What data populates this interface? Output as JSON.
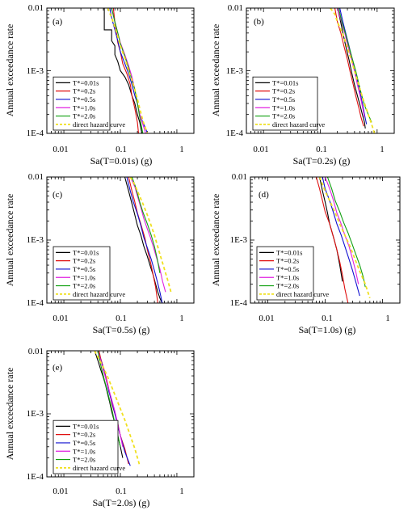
{
  "figure": {
    "colors": {
      "T*=0.01s": "#000000",
      "T*=0.2s": "#e01010",
      "T*=0.5s": "#1010d0",
      "T*=1.0s": "#e020e0",
      "T*=2.0s": "#10a010",
      "direct hazard curve": "#f0e020"
    }
  },
  "chart_data": [
    {
      "type": "line",
      "panel": "(a)",
      "xlabel": "Sa(T=0.01s) (g)",
      "ylabel": "Annual exceedance rate",
      "xscale": "log",
      "yscale": "log",
      "xlim": [
        0.005,
        2
      ],
      "ylim": [
        0.0001,
        0.01
      ],
      "xticks": [
        "0.01",
        "0.1",
        "1"
      ],
      "yticks": [
        "0.01",
        "1E-3",
        "1E-4"
      ],
      "legend_position": "lower-left",
      "series": [
        {
          "name": "T*=0.01s",
          "x": [
            0.045,
            0.052,
            0.052,
            0.07,
            0.07,
            0.08,
            0.08,
            0.09,
            0.1,
            0.12,
            0.14,
            0.16,
            0.18,
            0.2,
            0.22,
            0.24
          ],
          "y": [
            0.01,
            0.01,
            0.0045,
            0.0045,
            0.003,
            0.0025,
            0.0018,
            0.0014,
            0.001,
            0.0008,
            0.0006,
            0.0004,
            0.0003,
            0.0002,
            0.00015,
            0.0001
          ]
        },
        {
          "name": "T*=0.2s",
          "x": [
            0.075,
            0.08,
            0.085,
            0.09,
            0.1,
            0.11,
            0.13,
            0.15,
            0.16,
            0.18,
            0.2,
            0.21
          ],
          "y": [
            0.01,
            0.006,
            0.004,
            0.0028,
            0.002,
            0.0013,
            0.0009,
            0.0006,
            0.0004,
            0.00025,
            0.00015,
            0.0001
          ]
        },
        {
          "name": "T*=0.5s",
          "x": [
            0.065,
            0.07,
            0.08,
            0.09,
            0.1,
            0.12,
            0.14,
            0.16,
            0.18,
            0.2,
            0.22,
            0.25,
            0.28,
            0.3
          ],
          "y": [
            0.01,
            0.007,
            0.0045,
            0.003,
            0.002,
            0.0013,
            0.0009,
            0.0006,
            0.0004,
            0.0003,
            0.0002,
            0.00015,
            0.00012,
            0.0001
          ]
        },
        {
          "name": "T*=1.0s",
          "x": [
            0.07,
            0.08,
            0.09,
            0.1,
            0.12,
            0.14,
            0.16,
            0.18,
            0.2,
            0.22,
            0.25,
            0.28
          ],
          "y": [
            0.01,
            0.006,
            0.004,
            0.0028,
            0.0018,
            0.0012,
            0.0008,
            0.0005,
            0.0003,
            0.0002,
            0.00014,
            0.0001
          ]
        },
        {
          "name": "T*=2.0s",
          "x": [
            0.07,
            0.08,
            0.09,
            0.1,
            0.12,
            0.14,
            0.16,
            0.18,
            0.2,
            0.22,
            0.25
          ],
          "y": [
            0.01,
            0.006,
            0.004,
            0.0027,
            0.0017,
            0.0011,
            0.0007,
            0.0005,
            0.0003,
            0.00018,
            0.0001
          ]
        },
        {
          "name": "direct hazard curve",
          "x": [
            0.06,
            0.07,
            0.08,
            0.09,
            0.1,
            0.12,
            0.14,
            0.16,
            0.18,
            0.2,
            0.22,
            0.25,
            0.3
          ],
          "y": [
            0.01,
            0.007,
            0.005,
            0.0035,
            0.0025,
            0.0016,
            0.001,
            0.0007,
            0.0005,
            0.00035,
            0.00025,
            0.00016,
            0.0001
          ]
        }
      ]
    },
    {
      "type": "line",
      "panel": "(b)",
      "xlabel": "Sa(T=0.2s) (g)",
      "ylabel": "Annual exceedance rate",
      "xscale": "log",
      "yscale": "log",
      "xlim": [
        0.005,
        2
      ],
      "ylim": [
        0.0001,
        0.01
      ],
      "xticks": [
        "0.01",
        "0.1",
        "1"
      ],
      "yticks": [
        "0.01",
        "1E-3",
        "1E-4"
      ],
      "legend_position": "lower-left",
      "series": [
        {
          "name": "T*=0.01s",
          "x": [
            0.2,
            0.22,
            0.25,
            0.28,
            0.32,
            0.36,
            0.4,
            0.45,
            0.5,
            0.55,
            0.6,
            0.62
          ],
          "y": [
            0.01,
            0.007,
            0.004,
            0.0025,
            0.0015,
            0.0009,
            0.0006,
            0.0004,
            0.00028,
            0.0002,
            0.00015,
            0.00012
          ]
        },
        {
          "name": "T*=0.2s",
          "x": [
            0.18,
            0.2,
            0.23,
            0.26,
            0.3,
            0.34,
            0.38,
            0.42,
            0.48,
            0.52,
            0.58
          ],
          "y": [
            0.01,
            0.006,
            0.004,
            0.0025,
            0.0015,
            0.0009,
            0.0006,
            0.0004,
            0.00025,
            0.00018,
            0.00013
          ]
        },
        {
          "name": "T*=0.5s",
          "x": [
            0.22,
            0.25,
            0.28,
            0.32,
            0.36,
            0.4,
            0.45,
            0.5,
            0.55,
            0.6,
            0.65
          ],
          "y": [
            0.01,
            0.006,
            0.004,
            0.0025,
            0.0016,
            0.001,
            0.0007,
            0.00045,
            0.0003,
            0.0002,
            0.00014
          ]
        },
        {
          "name": "T*=1.0s",
          "x": [
            0.2,
            0.23,
            0.27,
            0.3,
            0.35,
            0.4,
            0.45,
            0.5,
            0.55,
            0.6
          ],
          "y": [
            0.01,
            0.0065,
            0.004,
            0.0026,
            0.0016,
            0.001,
            0.0006,
            0.0004,
            0.00027,
            0.00018
          ]
        },
        {
          "name": "T*=2.0s",
          "x": [
            0.21,
            0.24,
            0.28,
            0.32,
            0.37,
            0.42,
            0.47,
            0.53,
            0.6,
            0.7,
            0.8
          ],
          "y": [
            0.01,
            0.006,
            0.0038,
            0.0024,
            0.0015,
            0.001,
            0.00065,
            0.00042,
            0.00028,
            0.0002,
            0.00015
          ]
        },
        {
          "name": "direct hazard curve",
          "x": [
            0.15,
            0.18,
            0.2,
            0.25,
            0.3,
            0.35,
            0.4,
            0.5,
            0.6,
            0.7,
            0.8,
            0.9
          ],
          "y": [
            0.01,
            0.008,
            0.006,
            0.0038,
            0.0023,
            0.0015,
            0.001,
            0.0005,
            0.0003,
            0.0002,
            0.00014,
            0.0001
          ]
        }
      ]
    },
    {
      "type": "line",
      "panel": "(c)",
      "xlabel": "Sa(T=0.5s) (g)",
      "ylabel": "Annual exceedance rate",
      "xscale": "log",
      "yscale": "log",
      "xlim": [
        0.005,
        2
      ],
      "ylim": [
        0.0001,
        0.01
      ],
      "xticks": [
        "0.01",
        "0.1",
        "1"
      ],
      "yticks": [
        "0.01",
        "1E-3",
        "1E-4"
      ],
      "legend_position": "lower-left",
      "series": [
        {
          "name": "T*=0.01s",
          "x": [
            0.12,
            0.14,
            0.16,
            0.18,
            0.2,
            0.23,
            0.26,
            0.3,
            0.34,
            0.38,
            0.42,
            0.46,
            0.5,
            0.55
          ],
          "y": [
            0.01,
            0.006,
            0.0038,
            0.0025,
            0.0017,
            0.0012,
            0.0008,
            0.00055,
            0.00038,
            0.00028,
            0.0002,
            0.00015,
            0.00012,
            0.0001
          ]
        },
        {
          "name": "T*=0.2s",
          "x": [
            0.14,
            0.16,
            0.18,
            0.2,
            0.23,
            0.27,
            0.3,
            0.34,
            0.38,
            0.42,
            0.46
          ],
          "y": [
            0.01,
            0.006,
            0.004,
            0.0027,
            0.0018,
            0.0011,
            0.0007,
            0.00045,
            0.00028,
            0.00018,
            0.0001
          ]
        },
        {
          "name": "T*=0.5s",
          "x": [
            0.13,
            0.15,
            0.17,
            0.2,
            0.23,
            0.26,
            0.3,
            0.35,
            0.4,
            0.45,
            0.5,
            0.55
          ],
          "y": [
            0.01,
            0.006,
            0.004,
            0.0026,
            0.0017,
            0.0011,
            0.00075,
            0.0005,
            0.00033,
            0.00022,
            0.00015,
            0.0001
          ]
        },
        {
          "name": "T*=1.0s",
          "x": [
            0.15,
            0.18,
            0.2,
            0.23,
            0.26,
            0.3,
            0.34,
            0.38,
            0.43,
            0.5,
            0.56,
            0.63
          ],
          "y": [
            0.01,
            0.007,
            0.005,
            0.0033,
            0.0022,
            0.0015,
            0.0011,
            0.0008,
            0.00055,
            0.00035,
            0.00022,
            0.00015
          ]
        },
        {
          "name": "T*=2.0s",
          "x": [
            0.16,
            0.18,
            0.2,
            0.22,
            0.25,
            0.3,
            0.35,
            0.4,
            0.45,
            0.5
          ],
          "y": [
            0.01,
            0.0075,
            0.0055,
            0.004,
            0.0028,
            0.0018,
            0.0012,
            0.0008,
            0.0005,
            0.0003
          ]
        },
        {
          "name": "direct hazard curve",
          "x": [
            0.15,
            0.18,
            0.2,
            0.25,
            0.3,
            0.35,
            0.4,
            0.5,
            0.6,
            0.7,
            0.8
          ],
          "y": [
            0.01,
            0.0075,
            0.006,
            0.0038,
            0.0025,
            0.0017,
            0.0012,
            0.0006,
            0.00035,
            0.00022,
            0.00014
          ]
        }
      ]
    },
    {
      "type": "line",
      "panel": "(d)",
      "xlabel": "Sa(T=1.0s) (g)",
      "ylabel": "Annual exceedance rate",
      "xscale": "log",
      "yscale": "log",
      "xlim": [
        0.005,
        2
      ],
      "ylim": [
        0.0001,
        0.01
      ],
      "xticks": [
        "0.01",
        "0.1",
        "1"
      ],
      "yticks": [
        "0.01",
        "1E-3",
        "1E-4"
      ],
      "legend_position": "lower-left",
      "series": [
        {
          "name": "T*=0.01s",
          "x": [
            0.08,
            0.09,
            0.1,
            0.11,
            0.12,
            0.14,
            0.16,
            0.18,
            0.2
          ],
          "y": [
            0.01,
            0.006,
            0.004,
            0.0027,
            0.0018,
            0.0011,
            0.0007,
            0.0004,
            0.00022
          ]
        },
        {
          "name": "T*=0.2s",
          "x": [
            0.07,
            0.08,
            0.09,
            0.1,
            0.12,
            0.14,
            0.16,
            0.18,
            0.2,
            0.22,
            0.25
          ],
          "y": [
            0.01,
            0.0065,
            0.0042,
            0.0028,
            0.0018,
            0.0011,
            0.0007,
            0.00045,
            0.00028,
            0.00017,
            0.0001
          ]
        },
        {
          "name": "T*=0.5s",
          "x": [
            0.09,
            0.1,
            0.12,
            0.14,
            0.16,
            0.19,
            0.22,
            0.26,
            0.3,
            0.35,
            0.4
          ],
          "y": [
            0.01,
            0.0065,
            0.0042,
            0.0027,
            0.0018,
            0.0012,
            0.0008,
            0.0005,
            0.00033,
            0.0002,
            0.00013
          ]
        },
        {
          "name": "T*=1.0s",
          "x": [
            0.1,
            0.12,
            0.14,
            0.16,
            0.19,
            0.22,
            0.26,
            0.3,
            0.34,
            0.38
          ],
          "y": [
            0.01,
            0.0065,
            0.0042,
            0.0027,
            0.0018,
            0.0012,
            0.0008,
            0.0005,
            0.00032,
            0.0002
          ]
        },
        {
          "name": "T*=2.0s",
          "x": [
            0.11,
            0.13,
            0.15,
            0.18,
            0.21,
            0.25,
            0.29,
            0.34,
            0.4,
            0.46,
            0.5
          ],
          "y": [
            0.01,
            0.0065,
            0.0042,
            0.0028,
            0.0019,
            0.0013,
            0.0009,
            0.0006,
            0.0004,
            0.00026,
            0.00018
          ]
        },
        {
          "name": "direct hazard curve",
          "x": [
            0.08,
            0.1,
            0.12,
            0.15,
            0.18,
            0.22,
            0.27,
            0.33,
            0.4,
            0.5,
            0.6
          ],
          "y": [
            0.01,
            0.006,
            0.0042,
            0.0027,
            0.0018,
            0.0012,
            0.0008,
            0.0005,
            0.00032,
            0.0002,
            0.00012
          ]
        }
      ]
    },
    {
      "type": "line",
      "panel": "(e)",
      "xlabel": "Sa(T=2.0s) (g)",
      "ylabel": "Annual exceedance rate",
      "xscale": "log",
      "yscale": "log",
      "xlim": [
        0.005,
        2
      ],
      "ylim": [
        0.0001,
        0.01
      ],
      "xticks": [
        "0.01",
        "0.1",
        "1"
      ],
      "yticks": [
        "0.01",
        "1E-3",
        "1E-4"
      ],
      "legend_position": "lower-left",
      "series": [
        {
          "name": "T*=0.01s",
          "x": [
            0.035,
            0.04,
            0.045,
            0.05,
            0.055,
            0.06,
            0.065,
            0.07,
            0.08,
            0.09,
            0.1,
            0.11
          ],
          "y": [
            0.01,
            0.007,
            0.005,
            0.0038,
            0.0028,
            0.002,
            0.0015,
            0.0011,
            0.0007,
            0.00045,
            0.0003,
            0.0002
          ]
        },
        {
          "name": "T*=0.2s",
          "x": [
            0.042,
            0.045,
            0.05,
            0.055,
            0.06,
            0.065,
            0.07,
            0.08,
            0.09,
            0.1,
            0.12,
            0.14
          ],
          "y": [
            0.01,
            0.0075,
            0.0055,
            0.004,
            0.0029,
            0.0021,
            0.0015,
            0.001,
            0.0007,
            0.00045,
            0.00028,
            0.00016
          ]
        },
        {
          "name": "T*=0.5s",
          "x": [
            0.04,
            0.043,
            0.048,
            0.053,
            0.058,
            0.063,
            0.07,
            0.078,
            0.088,
            0.1,
            0.12,
            0.15
          ],
          "y": [
            0.01,
            0.008,
            0.006,
            0.0043,
            0.003,
            0.0022,
            0.0016,
            0.0011,
            0.0007,
            0.00045,
            0.00025,
            0.00015
          ]
        },
        {
          "name": "T*=1.0s",
          "x": [
            0.04,
            0.045,
            0.05,
            0.056,
            0.062,
            0.07,
            0.08,
            0.09,
            0.1,
            0.11
          ],
          "y": [
            0.01,
            0.007,
            0.005,
            0.0035,
            0.0025,
            0.0017,
            0.0011,
            0.0007,
            0.00045,
            0.0003
          ]
        },
        {
          "name": "T*=2.0s",
          "x": [
            0.04,
            0.043,
            0.047,
            0.052,
            0.058,
            0.065,
            0.072,
            0.08,
            0.09,
            0.1
          ],
          "y": [
            0.01,
            0.007,
            0.005,
            0.0035,
            0.0024,
            0.0016,
            0.0011,
            0.0007,
            0.00045,
            0.0003
          ]
        },
        {
          "name": "direct hazard curve",
          "x": [
            0.035,
            0.04,
            0.05,
            0.06,
            0.07,
            0.08,
            0.1,
            0.12,
            0.15,
            0.18,
            0.22
          ],
          "y": [
            0.01,
            0.008,
            0.0055,
            0.0038,
            0.0027,
            0.002,
            0.0012,
            0.0008,
            0.00045,
            0.00028,
            0.00015
          ]
        }
      ]
    }
  ]
}
